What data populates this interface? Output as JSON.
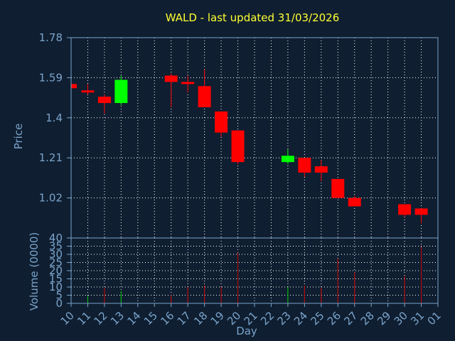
{
  "colors": {
    "background": "#0f1e30",
    "title": "#ffff33",
    "axis_text": "#7aa4cc",
    "axis_line": "#7aa4cc",
    "grid": "#ffffff",
    "up": "#00ff00",
    "down": "#ff0000",
    "volume_up": "#00cc00",
    "volume_down": "#cc0000"
  },
  "chart_data": [
    {
      "type": "candlestick",
      "title": "WALD - last updated 31/03/2026",
      "ylabel": "Price",
      "ylim": [
        0.83,
        1.78
      ],
      "yticks": [
        1.78,
        1.59,
        1.4,
        1.21,
        1.02
      ],
      "grid": true,
      "series": [
        {
          "day": "10",
          "open": 1.56,
          "high": 1.56,
          "low": 1.54,
          "close": 1.54
        },
        {
          "day": "11",
          "open": 1.53,
          "high": 1.56,
          "low": 1.51,
          "close": 1.52
        },
        {
          "day": "12",
          "open": 1.5,
          "high": 1.51,
          "low": 1.42,
          "close": 1.47
        },
        {
          "day": "13",
          "open": 1.47,
          "high": 1.6,
          "low": 1.46,
          "close": 1.58
        },
        {
          "day": "16",
          "open": 1.6,
          "high": 1.61,
          "low": 1.45,
          "close": 1.57
        },
        {
          "day": "17",
          "open": 1.57,
          "high": 1.6,
          "low": 1.52,
          "close": 1.56
        },
        {
          "day": "18",
          "open": 1.55,
          "high": 1.63,
          "low": 1.45,
          "close": 1.45
        },
        {
          "day": "19",
          "open": 1.43,
          "high": 1.43,
          "low": 1.31,
          "close": 1.33
        },
        {
          "day": "20",
          "open": 1.34,
          "high": 1.34,
          "low": 1.18,
          "close": 1.19
        },
        {
          "day": "23",
          "open": 1.19,
          "high": 1.25,
          "low": 1.18,
          "close": 1.22
        },
        {
          "day": "24",
          "open": 1.21,
          "high": 1.21,
          "low": 1.12,
          "close": 1.14
        },
        {
          "day": "25",
          "open": 1.17,
          "high": 1.2,
          "low": 1.1,
          "close": 1.14
        },
        {
          "day": "26",
          "open": 1.11,
          "high": 1.11,
          "low": 1.02,
          "close": 1.02
        },
        {
          "day": "27",
          "open": 1.02,
          "high": 1.03,
          "low": 0.98,
          "close": 0.98
        },
        {
          "day": "30",
          "open": 0.99,
          "high": 0.99,
          "low": 0.93,
          "close": 0.94
        },
        {
          "day": "31",
          "open": 0.97,
          "high": 0.97,
          "low": 0.9,
          "close": 0.94
        }
      ]
    },
    {
      "type": "bar",
      "ylabel": "Volume (0000)",
      "xlabel": "Day",
      "ylim": [
        0,
        40
      ],
      "yticks": [
        40,
        35,
        30,
        25,
        20,
        15,
        10,
        5,
        0
      ],
      "categories": [
        "10",
        "11",
        "12",
        "13",
        "14",
        "15",
        "16",
        "17",
        "18",
        "19",
        "20",
        "21",
        "22",
        "23",
        "24",
        "25",
        "26",
        "27",
        "28",
        "29",
        "30",
        "31",
        "01"
      ],
      "values": [
        0,
        4.5,
        9.5,
        7.5,
        0,
        0,
        5,
        10,
        11,
        10,
        31,
        0,
        0,
        10,
        11,
        9.5,
        27.5,
        19,
        0,
        0,
        17,
        34.5,
        0
      ],
      "direction": [
        "",
        "up",
        "down",
        "up",
        "",
        "",
        "down",
        "down",
        "down",
        "down",
        "down",
        "",
        "",
        "up",
        "down",
        "down",
        "down",
        "down",
        "",
        "",
        "down",
        "down",
        ""
      ]
    }
  ]
}
